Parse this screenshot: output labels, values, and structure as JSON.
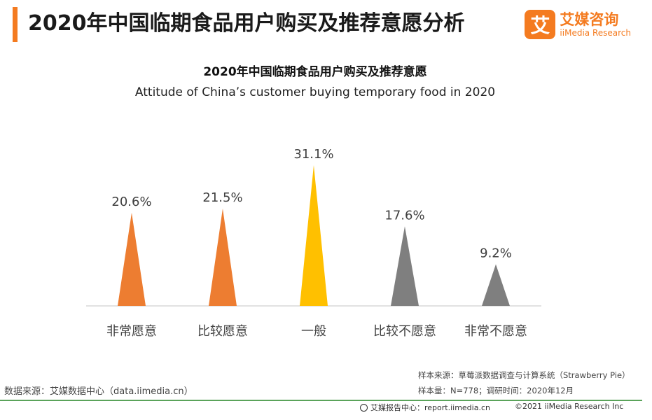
{
  "page": {
    "title": "2020年中国临期食品用户购买及推荐意愿分析"
  },
  "logo": {
    "mark": "艾",
    "cn": "艾媒咨询",
    "en": "iiMedia Research"
  },
  "colors": {
    "accent": "#f47b20",
    "orange": "#ed7d31",
    "yellow": "#ffc000",
    "gray": "#7f7f7f",
    "footer_line": "#5aa35a"
  },
  "chart_data": {
    "type": "bar",
    "title": "2020年中国临期食品用户购买及推荐意愿",
    "subtitle": "Attitude of China’s customer buying temporary food in 2020",
    "categories": [
      "非常愿意",
      "比较愿意",
      "一般",
      "比较不愿意",
      "非常不愿意"
    ],
    "values": [
      20.6,
      21.5,
      31.1,
      17.6,
      9.2
    ],
    "value_labels": [
      "20.6%",
      "21.5%",
      "31.1%",
      "17.6%",
      "9.2%"
    ],
    "bar_colors": [
      "#ed7d31",
      "#ed7d31",
      "#ffc000",
      "#7f7f7f",
      "#7f7f7f"
    ],
    "unit": "%",
    "ylim": [
      0,
      31.1
    ],
    "grid": false,
    "xlabel": "",
    "ylabel": ""
  },
  "footer": {
    "source": "数据来源：艾媒数据中心（data.iimedia.cn）",
    "sample_source": "样本来源：草莓派数据调查与计算系统（Strawberry Pie）",
    "sample_size": "样本量：N=778；调研时间：2020年12月",
    "report_center": "艾媒报告中心：report.iimedia.cn",
    "copyright": "©2021  iiMedia Research  Inc"
  }
}
